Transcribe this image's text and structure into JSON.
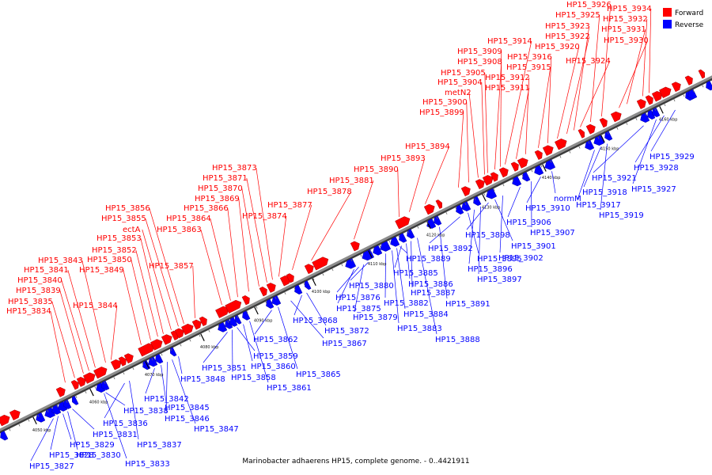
{
  "title": "Marinobacter adhaerens HP15, complete genome. - 0..4421911",
  "legend": [
    {
      "label": "Forward",
      "color": "#ff0000"
    },
    {
      "label": "Reverse",
      "color": "#0000ff"
    }
  ],
  "colors": {
    "forward": "#ff0000",
    "reverse": "#0000ff",
    "backbone": "#8c8c8c"
  },
  "ticks": [
    "4050 kbp",
    "4060 kbp",
    "4070 kbp",
    "4080 kbp",
    "4090 kbp",
    "4100 kbp",
    "4110 kbp",
    "4120 kbp",
    "4130 kbp",
    "4140 kbp",
    "4150 kbp",
    "4160 kbp"
  ],
  "forward_labels": [
    "HP15_3834",
    "HP15_3835",
    "HP15_3839",
    "HP15_3840",
    "HP15_3841",
    "HP15_3843",
    "HP15_3844",
    "HP15_3849",
    "HP15_3850",
    "HP15_3852",
    "HP15_3853",
    "ectA",
    "HP15_3855",
    "HP15_3856",
    "HP15_3857",
    "HP15_3863",
    "HP15_3864",
    "HP15_3866",
    "HP15_3869",
    "HP15_3870",
    "HP15_3871",
    "HP15_3873",
    "HP15_3874",
    "HP15_3877",
    "HP15_3878",
    "HP15_3881",
    "HP15_3890",
    "HP15_3893",
    "HP15_3894",
    "HP15_3899",
    "HP15_3900",
    "metN2",
    "HP15_3904",
    "HP15_3905",
    "HP15_3908",
    "HP15_3909",
    "HP15_3914",
    "HP15_3911",
    "HP15_3912",
    "HP15_3915",
    "HP15_3916",
    "HP15_3920",
    "HP15_3922",
    "HP15_3923",
    "HP15_3924",
    "HP15_3925",
    "HP15_3926",
    "HP15_3930",
    "HP15_3931",
    "HP15_3932",
    "HP15_3934"
  ],
  "reverse_labels": [
    "HP15_3827",
    "HP15_3828",
    "HP15_3829",
    "HP15_3830",
    "HP15_3831",
    "HP15_3833",
    "HP15_3836",
    "HP15_3837",
    "HP15_3838",
    "HP15_3842",
    "HP15_3845",
    "HP15_3846",
    "HP15_3847",
    "HP15_3848",
    "HP15_3851",
    "HP15_3858",
    "HP15_3859",
    "HP15_3860",
    "HP15_3861",
    "HP15_3862",
    "HP15_3865",
    "HP15_3867",
    "HP15_3868",
    "HP15_3872",
    "HP15_3875",
    "HP15_3876",
    "HP15_3879",
    "HP15_3880",
    "HP15_3882",
    "HP15_3883",
    "HP15_3884",
    "HP15_3885",
    "HP15_3886",
    "HP15_3887",
    "HP15_3888",
    "HP15_3889",
    "HP15_3891",
    "HP15_3892",
    "HP15_3895",
    "HP15_3896",
    "HP15_3897",
    "HP15_3898",
    "HP15_3901",
    "HP15_3902",
    "HP15_3906",
    "HP15_3907",
    "HP15_3910",
    "normM",
    "HP15_3917",
    "HP15_3918",
    "HP15_3919",
    "HP15_3921",
    "HP15_3927",
    "HP15_3928",
    "HP15_3929"
  ]
}
